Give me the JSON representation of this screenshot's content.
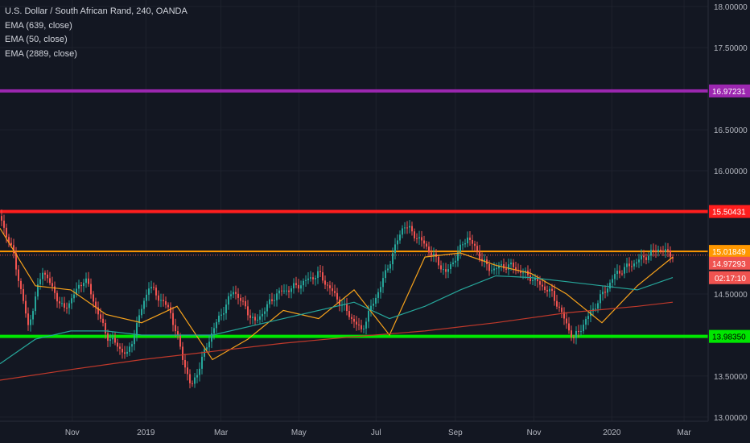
{
  "legend": {
    "title": "U.S. Dollar / South African Rand, 240, OANDA",
    "indicators": [
      "EMA (639, close)",
      "EMA (50, close)",
      "EMA (2889, close)"
    ]
  },
  "colors": {
    "background": "#131722",
    "grid": "#1e222d",
    "axis_text": "#b2b5be",
    "candle_up": "#26a69a",
    "candle_down": "#ef5350",
    "ema_fast": "#f7a21b",
    "ema_mid": "#26a69a",
    "ema_slow": "#c0392b",
    "level_purple": "#9c27b0",
    "level_red": "#ff1e1e",
    "level_orange": "#ff9800",
    "level_green": "#00e600",
    "current_price_tag": "#ef5350",
    "countdown_tag": "#ef5350"
  },
  "chart_data": {
    "type": "line",
    "title": "U.S. Dollar / South African Rand, 240, OANDA",
    "ylim": [
      12.95,
      18.08
    ],
    "y_ticks": [
      "18.00000",
      "17.50000",
      "16.50000",
      "16.00000",
      "14.50000",
      "13.50000",
      "13.00000"
    ],
    "x_ticks": [
      "Nov",
      "2019",
      "Mar",
      "May",
      "Jul",
      "Sep",
      "Nov",
      "2020",
      "Mar"
    ],
    "grid": true,
    "horizontal_levels": [
      {
        "value": 16.97231,
        "label": "16.97231",
        "color": "purple"
      },
      {
        "value": 15.50431,
        "label": "15.50431",
        "color": "red"
      },
      {
        "value": 15.01849,
        "label": "15.01849",
        "color": "orange"
      },
      {
        "value": 13.9835,
        "label": "13.98350",
        "color": "green"
      }
    ],
    "current_price": {
      "value": 14.97293,
      "label": "14.97293",
      "countdown": "02:17:10"
    },
    "series": [
      {
        "name": "USD/ZAR",
        "x_positions": [
          0,
          0.02,
          0.04,
          0.06,
          0.09,
          0.12,
          0.15,
          0.18,
          0.21,
          0.24,
          0.27,
          0.3,
          0.33,
          0.36,
          0.39,
          0.42,
          0.45,
          0.48,
          0.51,
          0.54,
          0.57,
          0.6,
          0.63,
          0.66,
          0.69,
          0.72,
          0.75,
          0.78,
          0.81,
          0.84,
          0.87,
          0.9,
          0.93,
          0.95
        ],
        "values": [
          15.45,
          14.95,
          14.1,
          14.8,
          14.3,
          14.7,
          14.0,
          13.75,
          14.6,
          14.3,
          13.35,
          14.05,
          14.55,
          14.15,
          14.5,
          14.6,
          14.75,
          14.4,
          14.05,
          14.65,
          15.35,
          15.1,
          14.75,
          15.2,
          14.8,
          14.85,
          14.7,
          14.5,
          13.95,
          14.35,
          14.75,
          14.9,
          15.05,
          14.97
        ]
      },
      {
        "name": "EMA (50, close)",
        "x_positions": [
          0,
          0.05,
          0.1,
          0.15,
          0.2,
          0.25,
          0.3,
          0.35,
          0.4,
          0.45,
          0.5,
          0.55,
          0.6,
          0.65,
          0.7,
          0.75,
          0.8,
          0.85,
          0.9,
          0.95
        ],
        "values": [
          15.3,
          14.6,
          14.55,
          14.25,
          14.15,
          14.35,
          13.7,
          13.95,
          14.3,
          14.2,
          14.55,
          14.0,
          14.95,
          15.0,
          14.85,
          14.75,
          14.5,
          14.15,
          14.6,
          14.95
        ]
      },
      {
        "name": "EMA (639, close)",
        "x_positions": [
          0,
          0.05,
          0.1,
          0.15,
          0.2,
          0.3,
          0.4,
          0.5,
          0.55,
          0.6,
          0.65,
          0.7,
          0.75,
          0.8,
          0.85,
          0.9,
          0.95
        ],
        "values": [
          13.65,
          13.95,
          14.05,
          14.05,
          14.0,
          14.0,
          14.2,
          14.4,
          14.2,
          14.35,
          14.55,
          14.72,
          14.7,
          14.65,
          14.6,
          14.55,
          14.7
        ]
      },
      {
        "name": "EMA (2889, close)",
        "x_positions": [
          0,
          0.1,
          0.2,
          0.3,
          0.4,
          0.5,
          0.6,
          0.7,
          0.8,
          0.9,
          0.95
        ],
        "values": [
          13.45,
          13.58,
          13.7,
          13.8,
          13.9,
          13.98,
          14.05,
          14.15,
          14.27,
          14.35,
          14.4
        ]
      }
    ]
  }
}
